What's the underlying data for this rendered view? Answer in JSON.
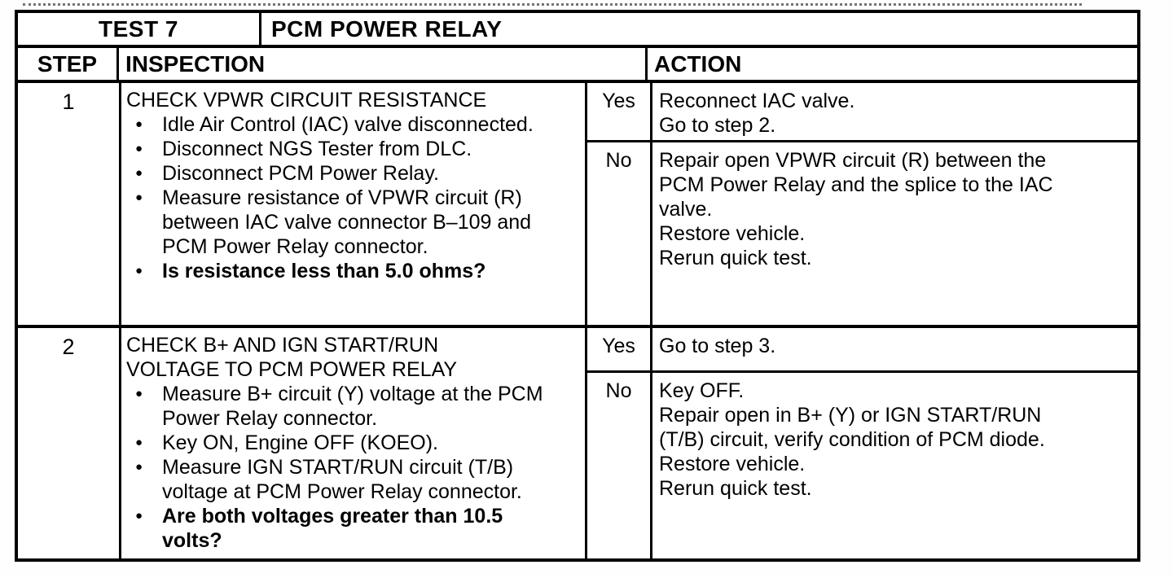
{
  "colors": {
    "ink": "#000000",
    "paper": "#ffffff"
  },
  "table": {
    "test_label": "TEST 7",
    "test_title": "PCM POWER RELAY",
    "headers": {
      "step": "STEP",
      "inspection": "INSPECTION",
      "action": "ACTION"
    },
    "rows": [
      {
        "step": "1",
        "title_lines": [
          "CHECK VPWR CIRCUIT RESISTANCE"
        ],
        "bullets": [
          {
            "text": "Idle Air Control (IAC) valve disconnected.",
            "bold": false
          },
          {
            "text": "Disconnect NGS Tester from DLC.",
            "bold": false
          },
          {
            "text": "Disconnect PCM Power Relay.",
            "bold": false
          },
          {
            "text": "Measure resistance of VPWR circuit (R) between IAC valve connector B–109 and PCM Power Relay connector.",
            "bold": false
          },
          {
            "text": "Is resistance less than 5.0 ohms?",
            "bold": true
          }
        ],
        "yes_label": "Yes",
        "no_label": "No",
        "yes_actions": [
          "Reconnect IAC valve.",
          "Go to step 2."
        ],
        "no_actions": [
          "Repair open VPWR circuit (R) between the PCM Power Relay and the splice to the IAC valve.",
          "Restore vehicle.",
          "Rerun quick test."
        ]
      },
      {
        "step": "2",
        "title_lines": [
          "CHECK B+ AND IGN START/RUN",
          "VOLTAGE TO PCM POWER RELAY"
        ],
        "bullets": [
          {
            "text": "Measure B+ circuit (Y) voltage at the PCM Power Relay connector.",
            "bold": false
          },
          {
            "text": "Key ON, Engine OFF (KOEO).",
            "bold": false
          },
          {
            "text": "Measure IGN START/RUN circuit (T/B) voltage at PCM Power Relay connector.",
            "bold": false
          },
          {
            "text": "Are both voltages greater than 10.5 volts?",
            "bold": true
          }
        ],
        "yes_label": "Yes",
        "no_label": "No",
        "yes_actions": [
          "Go to step 3."
        ],
        "no_actions": [
          "Key OFF.",
          "Repair open in B+ (Y) or IGN START/RUN (T/B) circuit, verify condition of PCM diode.",
          "Restore vehicle.",
          "Rerun quick test."
        ]
      }
    ]
  }
}
